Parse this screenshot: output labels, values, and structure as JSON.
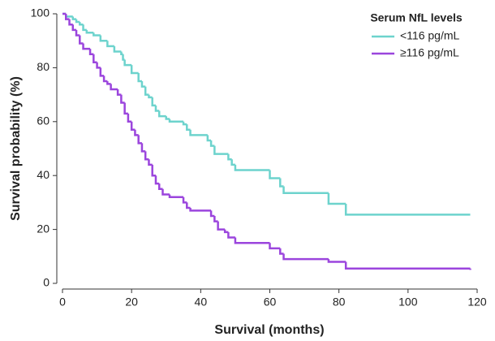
{
  "chart_data": {
    "type": "step",
    "x_label": "Survival (months)",
    "y_label": "Survival probability (%)",
    "legend_title": "Serum NfL levels",
    "legend_position": "upper right",
    "xlim": [
      0,
      120
    ],
    "xticks": [
      0,
      20,
      40,
      60,
      80,
      100,
      120
    ],
    "ylim": [
      0,
      100
    ],
    "yticks": [
      0,
      20,
      40,
      60,
      80,
      100
    ],
    "series": [
      {
        "name": "<116 pg/mL",
        "color": "#6dd3cd",
        "x": [
          0,
          1,
          3,
          4,
          5,
          6,
          7,
          9,
          11,
          13,
          15,
          17,
          17.5,
          18,
          20,
          22,
          23,
          24,
          25,
          26,
          27,
          28,
          30,
          31,
          35,
          36,
          37,
          42,
          43,
          44,
          48,
          49,
          50,
          60,
          63,
          64,
          77,
          82,
          118
        ],
        "values": [
          100,
          99,
          98,
          97,
          96,
          94,
          93,
          92,
          90,
          88,
          86,
          85,
          83,
          81,
          78,
          75,
          73,
          70,
          69,
          66,
          64,
          62,
          61,
          60,
          59,
          57,
          55,
          53,
          51,
          48,
          46,
          44,
          42,
          39,
          36,
          33.5,
          29.5,
          25.5,
          25.5
        ]
      },
      {
        "name": "≥116 pg/mL",
        "color": "#9b45dd",
        "x": [
          0,
          1,
          2,
          3,
          4,
          5,
          6,
          8,
          9,
          10,
          11,
          12,
          13,
          14,
          16,
          17,
          18,
          19,
          20,
          21,
          22,
          23,
          24,
          25,
          26,
          27,
          28,
          29,
          31,
          35,
          36,
          37,
          43,
          44,
          45,
          47,
          48,
          50,
          60,
          63,
          64,
          77,
          82,
          118
        ],
        "values": [
          100,
          98,
          96,
          94,
          92,
          89,
          87,
          85,
          82,
          80,
          77,
          75,
          74,
          72,
          70,
          67,
          63,
          60,
          57,
          55,
          52,
          49,
          46,
          44,
          40,
          37,
          35,
          33,
          32,
          30,
          28,
          27,
          25,
          23,
          20,
          19,
          17,
          15,
          13,
          11,
          9,
          8,
          5.5,
          5
        ]
      }
    ]
  }
}
